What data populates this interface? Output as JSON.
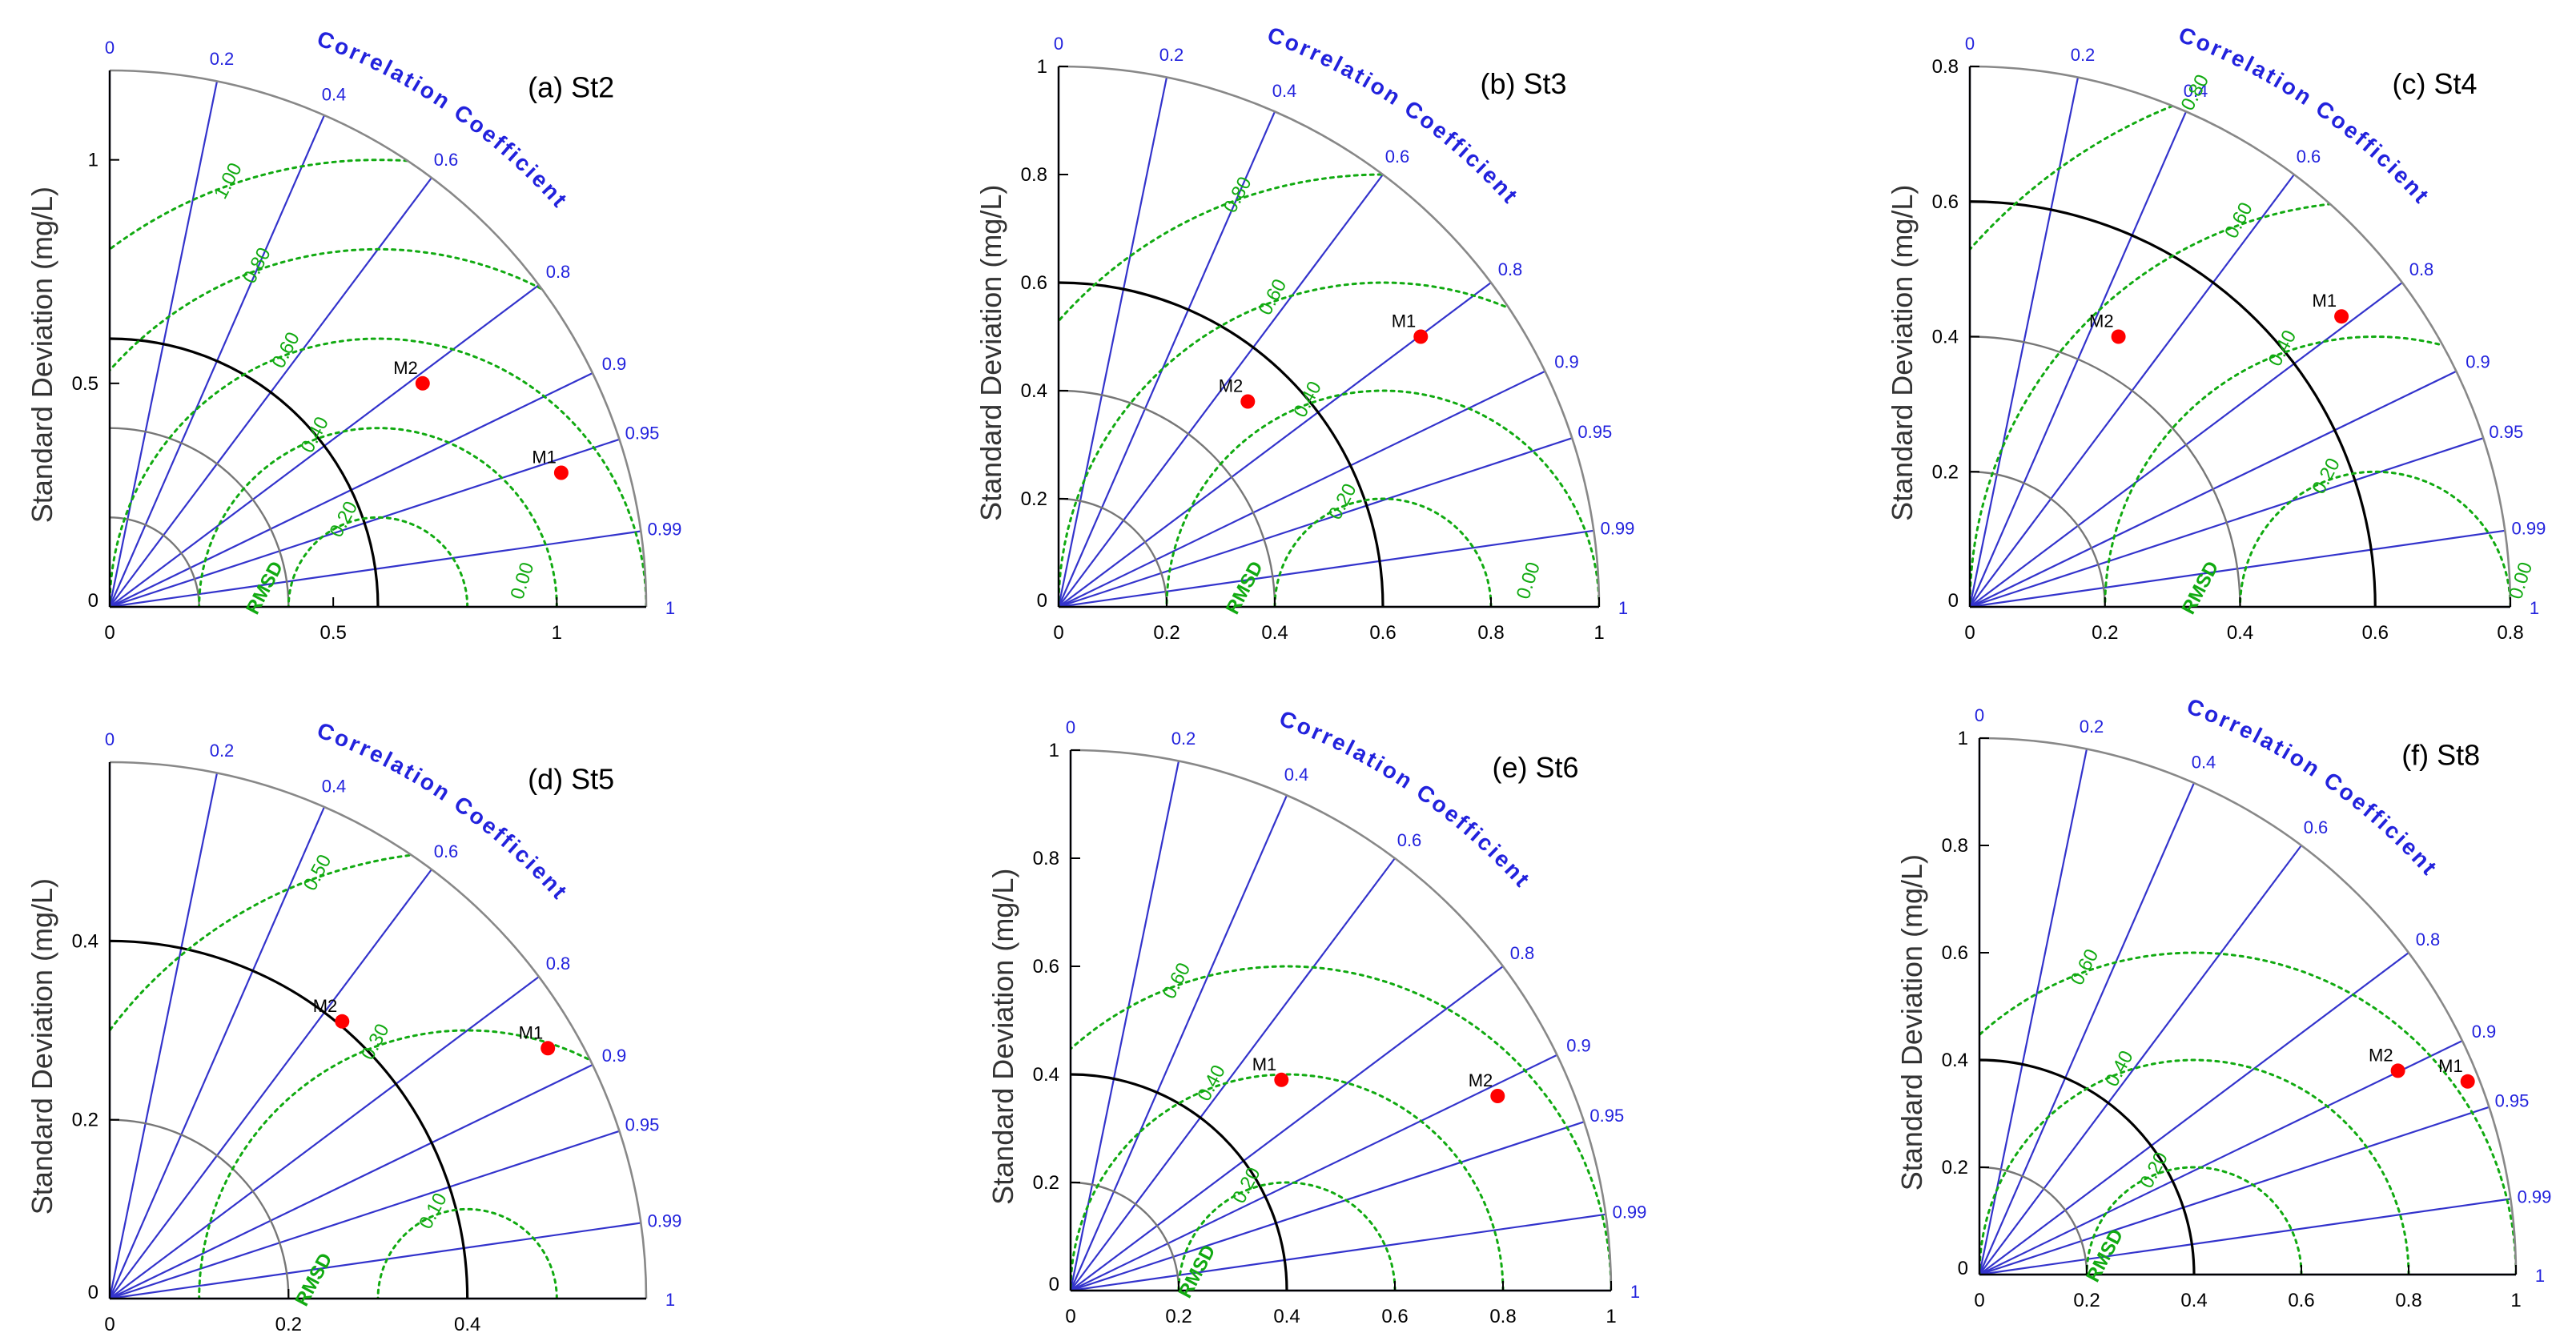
{
  "figure": {
    "colors": {
      "correlation_line": "#3333cc",
      "correlation_label": "#2222dd",
      "rmsd_contour": "#11aa11",
      "std_ref_arc": "#000000",
      "std_minor_arc": "#777777",
      "outer_arc": "#888888",
      "axis_text": "#000000",
      "point": "#ff0000"
    },
    "shared_text": {
      "ylabel": "Standard Deviation (mg/L)",
      "arc_label": "Correlation Coefficient",
      "rmsd_label": "RMSD"
    }
  },
  "chart_data": [
    {
      "type": "taylor",
      "title": "(a) St2",
      "ylabel": "Standard Deviation (mg/L)",
      "arc_label": "Correlation Coefficient",
      "rmsd_label": "RMSD",
      "std_max": 1.2,
      "std_ticks": [
        0,
        0.5,
        1
      ],
      "std_tick_labels": [
        "0",
        "0.5",
        "1"
      ],
      "std_arcs": [
        0.2,
        0.4
      ],
      "ref_std": 0.6,
      "correlation_ticks": [
        0,
        0.2,
        0.4,
        0.6,
        0.8,
        0.9,
        0.95,
        0.99,
        1
      ],
      "correlation_tick_labels": [
        "0",
        "0.2",
        "0.4",
        "0.6",
        "0.8",
        "0.9",
        "0.95",
        "0.99",
        "1"
      ],
      "rmsd_contours": [
        0.2,
        0.4,
        0.6,
        0.8,
        1.0
      ],
      "rmsd_labels": [
        {
          "value": 0.0,
          "text": "0.00"
        },
        {
          "value": 0.2,
          "text": "0.20"
        },
        {
          "value": 0.4,
          "text": "0.40"
        },
        {
          "value": 0.6,
          "text": "0.60"
        },
        {
          "value": 0.8,
          "text": "0.80"
        },
        {
          "value": 1.0,
          "text": "1.00"
        }
      ],
      "points": [
        {
          "name": "M1",
          "std_x": 1.01,
          "std_y": 0.3
        },
        {
          "name": "M2",
          "std_x": 0.7,
          "std_y": 0.5
        }
      ]
    },
    {
      "type": "taylor",
      "title": "(b) St3",
      "ylabel": "Standard Deviation (mg/L)",
      "arc_label": "Correlation Coefficient",
      "rmsd_label": "RMSD",
      "std_max": 1.0,
      "std_ticks": [
        0,
        0.2,
        0.4,
        0.6,
        0.8,
        1
      ],
      "std_tick_labels": [
        "0",
        "0.2",
        "0.4",
        "0.6",
        "0.8",
        "1"
      ],
      "std_arcs": [
        0.2,
        0.4
      ],
      "ref_std": 0.6,
      "correlation_ticks": [
        0,
        0.2,
        0.4,
        0.6,
        0.8,
        0.9,
        0.95,
        0.99,
        1
      ],
      "correlation_tick_labels": [
        "0",
        "0.2",
        "0.4",
        "0.6",
        "0.8",
        "0.9",
        "0.95",
        "0.99",
        "1"
      ],
      "rmsd_contours": [
        0.2,
        0.4,
        0.6,
        0.8
      ],
      "rmsd_labels": [
        {
          "value": 0.0,
          "text": "0.00"
        },
        {
          "value": 0.2,
          "text": "0.20"
        },
        {
          "value": 0.4,
          "text": "0.40"
        },
        {
          "value": 0.6,
          "text": "0.60"
        },
        {
          "value": 0.8,
          "text": "0.80"
        }
      ],
      "points": [
        {
          "name": "M1",
          "std_x": 0.67,
          "std_y": 0.5
        },
        {
          "name": "M2",
          "std_x": 0.35,
          "std_y": 0.38
        }
      ]
    },
    {
      "type": "taylor",
      "title": "(c) St4",
      "ylabel": "Standard Deviation (mg/L)",
      "arc_label": "Correlation Coefficient",
      "rmsd_label": "RMSD",
      "std_max": 0.8,
      "std_ticks": [
        0,
        0.2,
        0.4,
        0.6,
        0.8
      ],
      "std_tick_labels": [
        "0",
        "0.2",
        "0.4",
        "0.6",
        "0.8"
      ],
      "std_arcs": [
        0.2,
        0.4
      ],
      "ref_std": 0.6,
      "correlation_ticks": [
        0,
        0.2,
        0.4,
        0.6,
        0.8,
        0.9,
        0.95,
        0.99,
        1
      ],
      "correlation_tick_labels": [
        "0",
        "0.2",
        "0.4",
        "0.6",
        "0.8",
        "0.9",
        "0.95",
        "0.99",
        "1"
      ],
      "rmsd_contours": [
        0.2,
        0.4,
        0.6,
        0.8
      ],
      "rmsd_labels": [
        {
          "value": 0.0,
          "text": "0.00"
        },
        {
          "value": 0.2,
          "text": "0.20"
        },
        {
          "value": 0.4,
          "text": "0.40"
        },
        {
          "value": 0.6,
          "text": "0.60"
        },
        {
          "value": 0.8,
          "text": "0.80"
        }
      ],
      "points": [
        {
          "name": "M1",
          "std_x": 0.55,
          "std_y": 0.43
        },
        {
          "name": "M2",
          "std_x": 0.22,
          "std_y": 0.4
        }
      ]
    },
    {
      "type": "taylor",
      "title": "(d) St5",
      "ylabel": "Standard Deviation (mg/L)",
      "arc_label": "Correlation Coefficient",
      "rmsd_label": "RMSD",
      "std_max": 0.6,
      "std_ticks": [
        0,
        0.2,
        0.4
      ],
      "std_tick_labels": [
        "0",
        "0.2",
        "0.4"
      ],
      "std_arcs": [
        0.2
      ],
      "ref_std": 0.4,
      "correlation_ticks": [
        0,
        0.2,
        0.4,
        0.6,
        0.8,
        0.9,
        0.95,
        0.99,
        1
      ],
      "correlation_tick_labels": [
        "0",
        "0.2",
        "0.4",
        "0.6",
        "0.8",
        "0.9",
        "0.95",
        "0.99",
        "1"
      ],
      "rmsd_contours": [
        0.1,
        0.3,
        0.5
      ],
      "rmsd_labels": [
        {
          "value": 0.1,
          "text": "0.10"
        },
        {
          "value": 0.3,
          "text": "0.30"
        },
        {
          "value": 0.5,
          "text": "0.50"
        }
      ],
      "points": [
        {
          "name": "M1",
          "std_x": 0.49,
          "std_y": 0.28
        },
        {
          "name": "M2",
          "std_x": 0.26,
          "std_y": 0.31
        }
      ]
    },
    {
      "type": "taylor",
      "title": "(e) St6",
      "ylabel": "Standard Deviation (mg/L)",
      "arc_label": "Correlation Coefficient",
      "rmsd_label": "RMSD",
      "std_max": 1.0,
      "std_ticks": [
        0,
        0.2,
        0.4,
        0.6,
        0.8,
        1
      ],
      "std_tick_labels": [
        "0",
        "0.2",
        "0.4",
        "0.6",
        "0.8",
        "1"
      ],
      "std_arcs": [
        0.2
      ],
      "ref_std": 0.4,
      "correlation_ticks": [
        0,
        0.2,
        0.4,
        0.6,
        0.8,
        0.9,
        0.95,
        0.99,
        1
      ],
      "correlation_tick_labels": [
        "0",
        "0.2",
        "0.4",
        "0.6",
        "0.8",
        "0.9",
        "0.95",
        "0.99",
        "1"
      ],
      "rmsd_contours": [
        0.2,
        0.4,
        0.6
      ],
      "rmsd_labels": [
        {
          "value": 0.2,
          "text": "0.20"
        },
        {
          "value": 0.4,
          "text": "0.40"
        },
        {
          "value": 0.6,
          "text": "0.60"
        }
      ],
      "points": [
        {
          "name": "M1",
          "std_x": 0.39,
          "std_y": 0.39
        },
        {
          "name": "M2",
          "std_x": 0.79,
          "std_y": 0.36
        }
      ]
    },
    {
      "type": "taylor",
      "title": "(f) St8",
      "ylabel": "Standard Deviation (mg/L)",
      "arc_label": "Correlation Coefficient",
      "rmsd_label": "RMSD",
      "std_max": 1.0,
      "std_ticks": [
        0,
        0.2,
        0.4,
        0.6,
        0.8,
        1
      ],
      "std_tick_labels": [
        "0",
        "0.2",
        "0.4",
        "0.6",
        "0.8",
        "1"
      ],
      "std_arcs": [
        0.2
      ],
      "ref_std": 0.4,
      "correlation_ticks": [
        0,
        0.2,
        0.4,
        0.6,
        0.8,
        0.9,
        0.95,
        0.99,
        1
      ],
      "correlation_tick_labels": [
        "0",
        "0.2",
        "0.4",
        "0.6",
        "0.8",
        "0.9",
        "0.95",
        "0.99",
        "1"
      ],
      "rmsd_contours": [
        0.2,
        0.4,
        0.6
      ],
      "rmsd_labels": [
        {
          "value": 0.2,
          "text": "0.20"
        },
        {
          "value": 0.4,
          "text": "0.40"
        },
        {
          "value": 0.6,
          "text": "0.60"
        }
      ],
      "points": [
        {
          "name": "M1",
          "std_x": 0.91,
          "std_y": 0.36
        },
        {
          "name": "M2",
          "std_x": 0.78,
          "std_y": 0.38
        }
      ]
    }
  ]
}
